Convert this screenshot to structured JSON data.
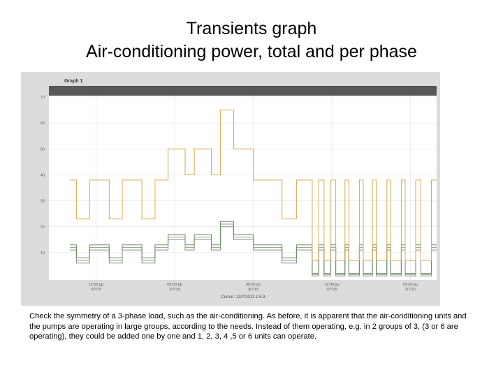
{
  "slide": {
    "title_line1": "Transients graph",
    "title_line2": "Air-conditioning power, total and per phase",
    "caption": "Check the symmetry of a 3-phase load, such as the air-conditioning. As before, it is apparent that the air-conditioning units and the pumps are operating in large groups, according to the needs. Instead of them operating, e.g. in 2 groups of 3, (3 or 6 are operating), they could be added one by one and 1, 2, 3, 4 ,5 or 6 units can operate."
  },
  "colors": {
    "total": "#d9a94e",
    "phase1": "#6e8a6a",
    "phase2": "#8aa07e",
    "phase3": "#8d8d8d",
    "header_bar": "#585858",
    "plot_bg": "#ffffff",
    "grid": "#e3e3e3"
  },
  "chart_data": {
    "type": "line",
    "panel_title": "Graph 1",
    "ylim": [
      0,
      70
    ],
    "yticks": [
      "70",
      "60",
      "50",
      "40",
      "30",
      "20",
      "10"
    ],
    "xlim": [
      0,
      28
    ],
    "xticks": [
      {
        "x": 2,
        "line1": "12:00 pp",
        "line2": "3/7/15"
      },
      {
        "x": 8,
        "line1": "06:00 pp",
        "line2": "3/7/15"
      },
      {
        "x": 14,
        "line1": "09:00 pp",
        "line2": "3/7/15"
      },
      {
        "x": 20,
        "line1": "12:00 pμ",
        "line2": "3/7/15"
      },
      {
        "x": 26,
        "line1": "03:00 pμ",
        "line2": "3/7/15"
      }
    ],
    "cursor_label": "Cursor: 13/7/2013 1:5:3",
    "grid": true,
    "series": [
      {
        "key": "total",
        "x": [
          0,
          0.5,
          0.5,
          1.5,
          1.5,
          3,
          3,
          4,
          4,
          5.5,
          5.5,
          6.5,
          6.5,
          7.5,
          7.5,
          8.8,
          8.8,
          9.5,
          9.5,
          10.8,
          10.8,
          11.5,
          11.5,
          12.5,
          12.5,
          14,
          14,
          16.2,
          16.2,
          17.3,
          17.3,
          18.5,
          18.5,
          19,
          19,
          19.4,
          19.4,
          19.9,
          19.9,
          20.3,
          20.3,
          21,
          21,
          21.3,
          21.3,
          22.1,
          22.1,
          22.4,
          22.4,
          23.1,
          23.1,
          23.4,
          23.4,
          24.2,
          24.2,
          24.5,
          24.5,
          25.3,
          25.3,
          25.6,
          25.6,
          26.4,
          26.4,
          26.8,
          26.8,
          27.6,
          27.6,
          28
        ],
        "y": [
          38,
          38,
          23,
          23,
          38,
          38,
          23,
          23,
          38,
          38,
          23,
          23,
          38,
          38,
          50,
          50,
          40,
          40,
          50,
          50,
          40,
          40,
          65,
          65,
          50,
          50,
          38,
          38,
          23,
          23,
          38,
          38,
          7,
          7,
          38,
          38,
          7,
          7,
          38,
          38,
          7,
          7,
          38,
          38,
          7,
          7,
          38,
          38,
          7,
          7,
          38,
          38,
          7,
          7,
          38,
          38,
          7,
          7,
          38,
          38,
          7,
          7,
          38,
          38,
          7,
          7,
          38,
          38
        ]
      },
      {
        "key": "phase1",
        "x": [
          0,
          0.5,
          0.5,
          1.5,
          1.5,
          3,
          3,
          4,
          4,
          5.5,
          5.5,
          6.5,
          6.5,
          7.5,
          7.5,
          8.8,
          8.8,
          9.5,
          9.5,
          10.8,
          10.8,
          11.5,
          11.5,
          12.5,
          12.5,
          14,
          14,
          16.2,
          16.2,
          17.3,
          17.3,
          18.5,
          18.5,
          19,
          19,
          19.4,
          19.4,
          19.9,
          19.9,
          20.3,
          20.3,
          21,
          21,
          21.3,
          21.3,
          22.1,
          22.1,
          22.4,
          22.4,
          23.1,
          23.1,
          23.4,
          23.4,
          24.2,
          24.2,
          24.5,
          24.5,
          25.3,
          25.3,
          25.6,
          25.6,
          26.4,
          26.4,
          26.8,
          26.8,
          27.6,
          27.6,
          28
        ],
        "y": [
          13,
          13,
          8,
          8,
          13,
          13,
          8,
          8,
          13,
          13,
          8,
          8,
          13,
          13,
          17,
          17,
          13,
          13,
          17,
          17,
          13,
          13,
          22,
          22,
          17,
          17,
          13,
          13,
          8,
          8,
          13,
          13,
          2,
          2,
          13,
          13,
          2,
          2,
          13,
          13,
          2,
          2,
          13,
          13,
          2,
          2,
          13,
          13,
          2,
          2,
          13,
          13,
          2,
          2,
          13,
          13,
          2,
          2,
          13,
          13,
          2,
          2,
          13,
          13,
          2,
          2,
          13,
          13
        ]
      },
      {
        "key": "phase2",
        "x": [
          0,
          0.5,
          0.5,
          1.5,
          1.5,
          3,
          3,
          4,
          4,
          5.5,
          5.5,
          6.5,
          6.5,
          7.5,
          7.5,
          8.8,
          8.8,
          9.5,
          9.5,
          10.8,
          10.8,
          11.5,
          11.5,
          12.5,
          12.5,
          14,
          14,
          16.2,
          16.2,
          17.3,
          17.3,
          18.5,
          18.5,
          19,
          19,
          19.4,
          19.4,
          19.9,
          19.9,
          20.3,
          20.3,
          21,
          21,
          21.3,
          21.3,
          22.1,
          22.1,
          22.4,
          22.4,
          23.1,
          23.1,
          23.4,
          23.4,
          24.2,
          24.2,
          24.5,
          24.5,
          25.3,
          25.3,
          25.6,
          25.6,
          26.4,
          26.4,
          26.8,
          26.8,
          27.6,
          27.6,
          28
        ],
        "y": [
          12,
          12,
          7,
          7,
          12,
          12,
          7,
          7,
          12,
          12,
          7,
          7,
          12,
          12,
          16,
          16,
          12,
          12,
          16,
          16,
          12,
          12,
          21,
          21,
          16,
          16,
          12,
          12,
          7,
          7,
          12,
          12,
          1.5,
          1.5,
          12,
          12,
          1.5,
          1.5,
          12,
          12,
          1.5,
          1.5,
          12,
          12,
          1.5,
          1.5,
          12,
          12,
          1.5,
          1.5,
          12,
          12,
          1.5,
          1.5,
          12,
          12,
          1.5,
          1.5,
          12,
          12,
          1.5,
          1.5,
          12,
          12,
          1.5,
          1.5,
          12,
          12
        ]
      },
      {
        "key": "phase3",
        "x": [
          0,
          0.5,
          0.5,
          1.5,
          1.5,
          3,
          3,
          4,
          4,
          5.5,
          5.5,
          6.5,
          6.5,
          7.5,
          7.5,
          8.8,
          8.8,
          9.5,
          9.5,
          10.8,
          10.8,
          11.5,
          11.5,
          12.5,
          12.5,
          14,
          14,
          16.2,
          16.2,
          17.3,
          17.3,
          18.5,
          18.5,
          19,
          19,
          19.4,
          19.4,
          19.9,
          19.9,
          20.3,
          20.3,
          21,
          21,
          21.3,
          21.3,
          22.1,
          22.1,
          22.4,
          22.4,
          23.1,
          23.1,
          23.4,
          23.4,
          24.2,
          24.2,
          24.5,
          24.5,
          25.3,
          25.3,
          25.6,
          25.6,
          26.4,
          26.4,
          26.8,
          26.8,
          27.6,
          27.6,
          28
        ],
        "y": [
          11,
          11,
          6,
          6,
          11,
          11,
          6,
          6,
          11,
          11,
          6,
          6,
          11,
          11,
          15,
          15,
          11,
          11,
          15,
          15,
          11,
          11,
          20,
          20,
          15,
          15,
          11,
          11,
          6,
          6,
          11,
          11,
          1,
          1,
          11,
          11,
          1,
          1,
          11,
          11,
          1,
          1,
          11,
          11,
          1,
          1,
          11,
          11,
          1,
          1,
          11,
          11,
          1,
          1,
          11,
          11,
          1,
          1,
          11,
          11,
          1,
          1,
          11,
          11,
          1,
          1,
          11,
          11
        ]
      }
    ]
  }
}
